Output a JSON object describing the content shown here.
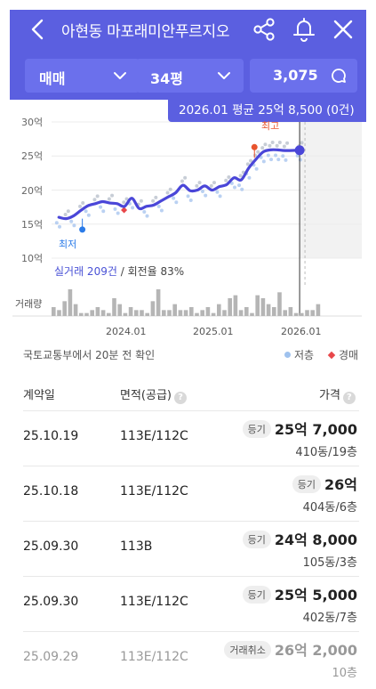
{
  "header": {
    "title": "아현동 마포래미안푸르지오",
    "filters": [
      {
        "label": "매매"
      },
      {
        "label": "34평"
      },
      {
        "label": "3,075"
      }
    ],
    "colors": {
      "brand": "#5b5fe0",
      "filter_bg": "#6b70ec"
    }
  },
  "tooltip": "2026.01 평균 25억 8,500 (0건)",
  "chart": {
    "y_ticks": [
      "30억",
      "25억",
      "20억",
      "15억",
      "10억"
    ],
    "x_ticks": [
      "2024.01",
      "2025.01",
      "2026.01"
    ],
    "min_label": "최저",
    "max_label": "최고",
    "stats_count": "실거래 209건",
    "stats_rate": " / 회전율 83%",
    "volume_label": "거래량"
  },
  "chart_data": {
    "type": "line",
    "ylabel": "",
    "ylim": [
      10,
      30
    ],
    "y_unit": "억",
    "series": [
      {
        "points": [
          [
            "2023-04",
            16.0
          ],
          [
            "2023-05",
            15.8
          ],
          [
            "2023-06",
            16.2
          ],
          [
            "2023-07",
            17.0
          ],
          [
            "2023-08",
            17.7
          ],
          [
            "2023-09",
            18.0
          ],
          [
            "2023-10",
            18.3
          ],
          [
            "2023-11",
            18.1
          ],
          [
            "2023-12",
            18.0
          ],
          [
            "2024-01",
            17.6
          ],
          [
            "2024-02",
            18.8
          ],
          [
            "2024-03",
            17.3
          ],
          [
            "2024-04",
            17.6
          ],
          [
            "2024-05",
            17.8
          ],
          [
            "2024-06",
            18.4
          ],
          [
            "2024-07",
            19.0
          ],
          [
            "2024-08",
            19.6
          ],
          [
            "2024-09",
            20.7
          ],
          [
            "2024-10",
            19.9
          ],
          [
            "2024-11",
            20.0
          ],
          [
            "2024-12",
            20.6
          ],
          [
            "2025-01",
            20.0
          ],
          [
            "2025-02",
            20.5
          ],
          [
            "2025-03",
            20.8
          ],
          [
            "2025-04",
            21.8
          ],
          [
            "2025-05",
            21.5
          ],
          [
            "2025-06",
            23.2
          ],
          [
            "2025-07",
            24.5
          ],
          [
            "2025-08",
            25.6
          ],
          [
            "2025-09",
            25.9
          ],
          [
            "2025-10",
            25.9
          ],
          [
            "2025-11",
            25.8
          ],
          [
            "2026-01",
            25.85
          ]
        ]
      }
    ],
    "low_point": {
      "x": "2023-06",
      "y": 14.2,
      "label": "최저"
    },
    "high_point": {
      "x": "2025-09",
      "y": 26.3,
      "label": "최고"
    },
    "legend": [
      "저층",
      "경매"
    ],
    "volume": [
      3,
      2,
      5,
      9,
      4,
      1,
      1,
      2,
      3,
      2,
      1,
      6,
      4,
      1,
      3,
      2,
      2,
      1,
      5,
      9,
      2,
      2,
      4,
      2,
      2,
      3,
      1,
      2,
      3,
      1,
      4,
      2,
      6,
      7,
      2,
      3,
      1,
      7,
      6,
      4,
      3,
      8,
      2,
      3,
      1,
      1,
      2,
      2,
      4
    ]
  },
  "source_note": "국토교통부에서 20분 전 확인",
  "legend": {
    "low_floor": "저층",
    "auction": "경매"
  },
  "table": {
    "headers": {
      "date": "계약일",
      "area": "면적(공급)",
      "price": "가격"
    },
    "rows": [
      {
        "date": "25.10.19",
        "area": "113E/112C",
        "badge": "등기",
        "price": "25억 7,000",
        "sub": "410동/19층"
      },
      {
        "date": "25.10.18",
        "area": "113E/112C",
        "badge": "등기",
        "price": "26억",
        "sub": "404동/6층"
      },
      {
        "date": "25.09.30",
        "area": "113B",
        "badge": "등기",
        "price": "24억 8,000",
        "sub": "105동/3층"
      },
      {
        "date": "25.09.30",
        "area": "113E/112C",
        "badge": "등기",
        "price": "25억 5,000",
        "sub": "402동/7층"
      },
      {
        "date": "25.09.29",
        "area": "113E/112C",
        "badge": "거래취소",
        "price": "26억 2,000",
        "sub": "10층"
      }
    ]
  }
}
